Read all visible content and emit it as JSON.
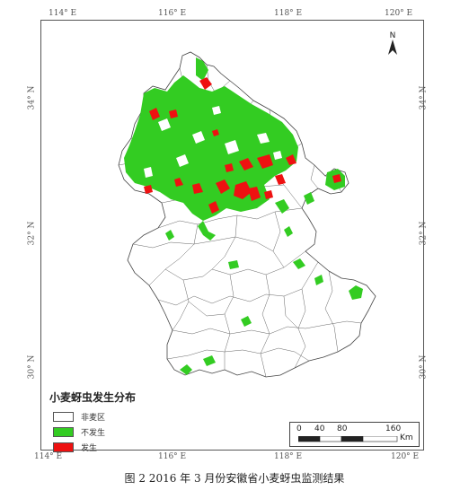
{
  "map": {
    "top_ticks": [
      "114° E",
      "116° E",
      "118° E",
      "120° E"
    ],
    "bottom_ticks": [
      "114° E",
      "116° E",
      "118° E",
      "120° E"
    ],
    "left_ticks": [
      "34° N",
      "32° N",
      "30° N"
    ],
    "right_ticks": [
      "34° N",
      "32° N",
      "30° N"
    ],
    "north_label": "N"
  },
  "legend": {
    "title": "小麦蚜虫发生分布",
    "items": [
      {
        "label": "非麦区",
        "color": "#ffffff"
      },
      {
        "label": "不发生",
        "color": "#33cc22"
      },
      {
        "label": "发生",
        "color": "#ee1111"
      }
    ]
  },
  "scale": {
    "labels": [
      "0",
      "40",
      "80",
      "160"
    ],
    "unit": "Km"
  },
  "caption": "图 2 2016 年 3 月份安徽省小麦蚜虫监测结果"
}
